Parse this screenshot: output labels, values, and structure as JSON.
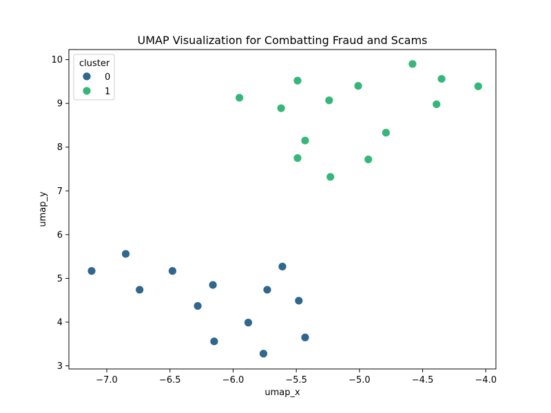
{
  "chart_data": {
    "type": "scatter",
    "title": "UMAP Visualization for Combatting Fraud and Scams",
    "xlabel": "umap_x",
    "ylabel": "umap_y",
    "xlim": [
      -7.3,
      -3.92
    ],
    "ylim": [
      2.93,
      10.23
    ],
    "xticks": [
      -7.0,
      -6.5,
      -6.0,
      -5.5,
      -5.0,
      -4.5,
      -4.0
    ],
    "xtick_labels": [
      "−7.0",
      "−6.5",
      "−6.0",
      "−5.5",
      "−5.0",
      "−4.5",
      "−4.0"
    ],
    "yticks": [
      3,
      4,
      5,
      6,
      7,
      8,
      9,
      10
    ],
    "ytick_labels": [
      "3",
      "4",
      "5",
      "6",
      "7",
      "8",
      "9",
      "10"
    ],
    "grid": false,
    "legend": {
      "title": "cluster",
      "position": "top-left"
    },
    "series": [
      {
        "name": "0",
        "color": "#30678d",
        "points": [
          [
            -7.12,
            5.17
          ],
          [
            -6.85,
            5.56
          ],
          [
            -6.74,
            4.74
          ],
          [
            -6.48,
            5.17
          ],
          [
            -6.28,
            4.37
          ],
          [
            -6.16,
            4.85
          ],
          [
            -6.15,
            3.56
          ],
          [
            -5.88,
            3.99
          ],
          [
            -5.76,
            3.28
          ],
          [
            -5.73,
            4.74
          ],
          [
            -5.61,
            5.27
          ],
          [
            -5.48,
            4.49
          ],
          [
            -5.43,
            3.65
          ]
        ]
      },
      {
        "name": "1",
        "color": "#35b779",
        "points": [
          [
            -5.95,
            9.13
          ],
          [
            -5.62,
            8.89
          ],
          [
            -5.49,
            9.52
          ],
          [
            -5.49,
            7.75
          ],
          [
            -5.43,
            8.15
          ],
          [
            -5.24,
            9.07
          ],
          [
            -5.23,
            7.32
          ],
          [
            -5.01,
            9.4
          ],
          [
            -4.93,
            7.72
          ],
          [
            -4.79,
            8.33
          ],
          [
            -4.58,
            9.9
          ],
          [
            -4.39,
            8.98
          ],
          [
            -4.35,
            9.56
          ],
          [
            -4.06,
            9.39
          ]
        ]
      }
    ]
  }
}
